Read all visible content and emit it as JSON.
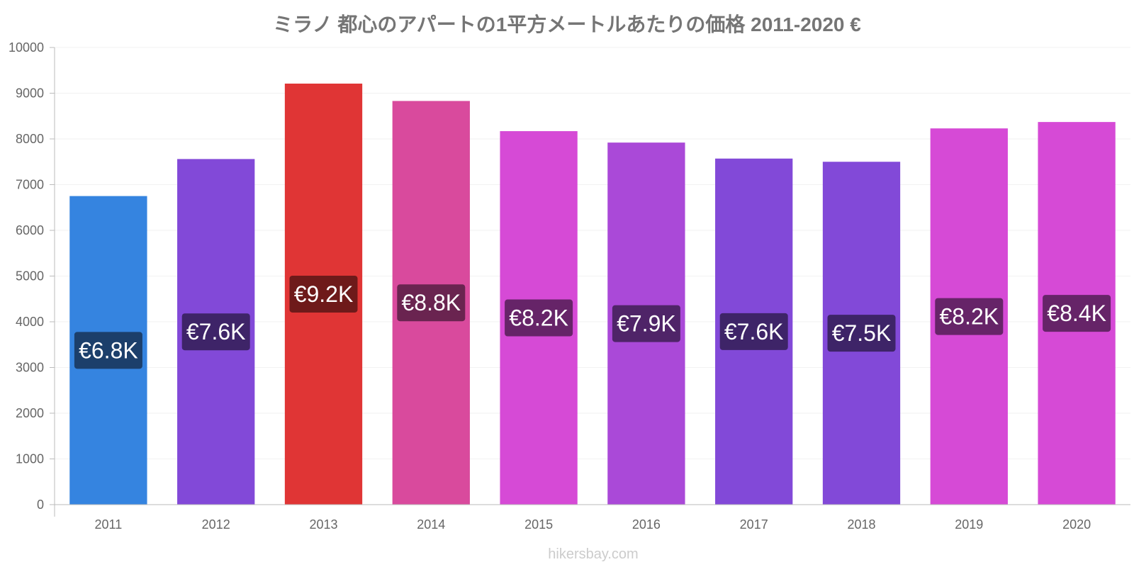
{
  "chart_data": {
    "type": "bar",
    "title": "ミラノ 都心のアパートの1平方メートルあたりの価格 2011-2020 €",
    "categories": [
      "2011",
      "2012",
      "2013",
      "2014",
      "2015",
      "2016",
      "2017",
      "2018",
      "2019",
      "2020"
    ],
    "values": [
      6750,
      7560,
      9210,
      8830,
      8170,
      7920,
      7570,
      7500,
      8230,
      8370
    ],
    "data_labels": [
      "€6.8K",
      "€7.6K",
      "€9.2K",
      "€8.8K",
      "€8.2K",
      "€7.9K",
      "€7.6K",
      "€7.5K",
      "€8.2K",
      "€8.4K"
    ],
    "bar_colors": [
      "#3584e0",
      "#8249d8",
      "#e03535",
      "#d94a9d",
      "#d64ad6",
      "#aa49d8",
      "#8249d8",
      "#8249d8",
      "#d64ad6",
      "#d64ad6"
    ],
    "label_bg_colors": [
      "#1c3f6b",
      "#3e2468",
      "#6e1a1a",
      "#6a2450",
      "#662468",
      "#4f2468",
      "#3e2468",
      "#3e2468",
      "#662468",
      "#662468"
    ],
    "ylim": [
      0,
      10000
    ],
    "yticks": [
      0,
      1000,
      2000,
      3000,
      4000,
      5000,
      6000,
      7000,
      8000,
      9000,
      10000
    ],
    "grid": true,
    "xlabel": "",
    "ylabel": ""
  },
  "source": "hikersbay.com"
}
